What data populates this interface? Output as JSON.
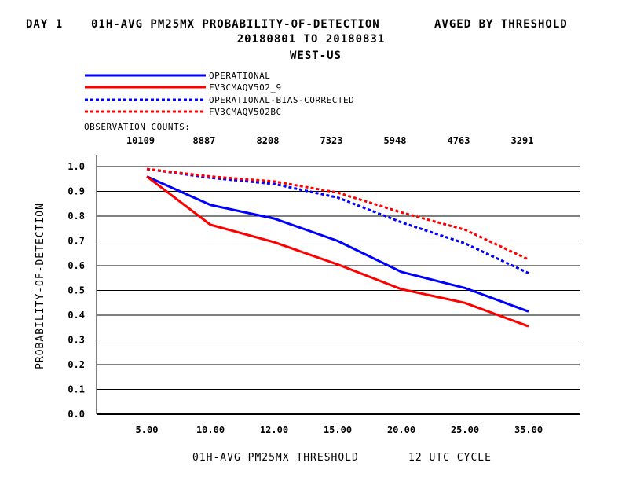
{
  "header": {
    "day_label": "DAY 1",
    "title": "01H-AVG PM25MX PROBABILITY-OF-DETECTION",
    "avg_label": "AVGED BY THRESHOLD",
    "date_range": "20180801 TO 20180831",
    "region": "WEST-US"
  },
  "obs": {
    "label": "OBSERVATION COUNTS:",
    "counts": [
      "10109",
      "8887",
      "8208",
      "7323",
      "5948",
      "4763",
      "3291"
    ]
  },
  "chart_data": {
    "type": "line",
    "title": "01H-AVG PM25MX PROBABILITY-OF-DETECTION",
    "xlabel": "01H-AVG PM25MX THRESHOLD",
    "xlabel_suffix": "12 UTC CYCLE",
    "ylabel": "PROBABILITY-OF-DETECTION",
    "categories": [
      "5.00",
      "10.00",
      "12.00",
      "15.00",
      "20.00",
      "25.00",
      "35.00"
    ],
    "ylim": [
      0,
      1.0
    ],
    "yticks": [
      "0.0",
      "0.1",
      "0.2",
      "0.3",
      "0.4",
      "0.5",
      "0.6",
      "0.7",
      "0.8",
      "0.9",
      "1.0"
    ],
    "grid": "horizontal",
    "legend_position": "top-left",
    "series": [
      {
        "name": "OPERATIONAL",
        "color": "#0000ff",
        "dashed": false,
        "values": [
          0.96,
          0.845,
          0.79,
          0.7,
          0.575,
          0.51,
          0.415
        ]
      },
      {
        "name": "FV3CMAQV502_9",
        "color": "#ff0000",
        "dashed": false,
        "values": [
          0.96,
          0.765,
          0.695,
          0.605,
          0.505,
          0.45,
          0.355
        ]
      },
      {
        "name": "OPERATIONAL-BIAS-CORRECTED",
        "color": "#0000ff",
        "dashed": true,
        "values": [
          0.99,
          0.955,
          0.93,
          0.875,
          0.775,
          0.69,
          0.57
        ]
      },
      {
        "name": "FV3CMAQV502BC",
        "color": "#ff0000",
        "dashed": true,
        "values": [
          0.99,
          0.96,
          0.94,
          0.895,
          0.815,
          0.745,
          0.625
        ]
      }
    ]
  }
}
